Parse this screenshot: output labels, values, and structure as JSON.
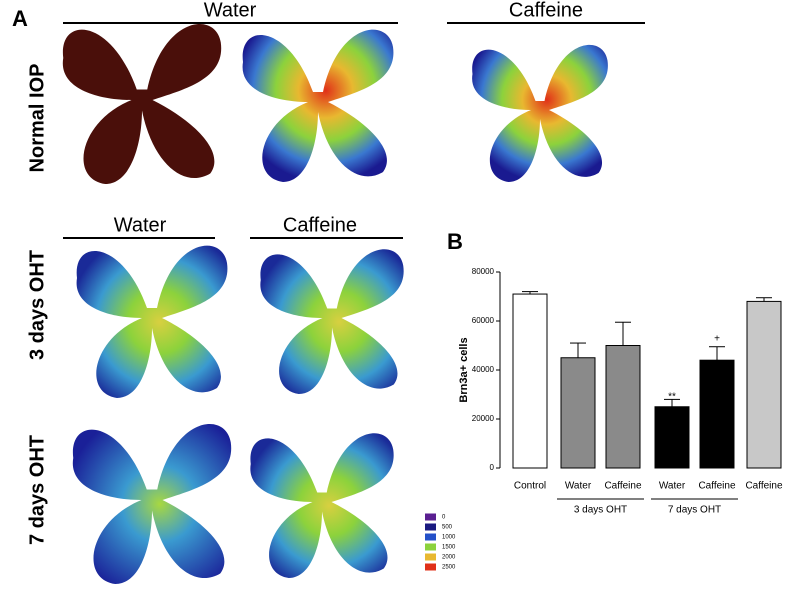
{
  "panel_a": {
    "label": "A",
    "headers": [
      "Water",
      "Caffeine",
      "Water",
      "Caffeine"
    ],
    "row_labels": [
      "Normal IOP",
      "3 days OHT",
      "7 days OHT"
    ],
    "heatmap_legend": [
      {
        "value": 0,
        "color": "#5a1f91"
      },
      {
        "value": 500,
        "color": "#1a1a80"
      },
      {
        "value": 1000,
        "color": "#2450c8"
      },
      {
        "value": 1500,
        "color": "#8cd23c"
      },
      {
        "value": 2000,
        "color": "#e8b830"
      },
      {
        "value": 2500,
        "color": "#e03018"
      }
    ]
  },
  "chart_data": {
    "type": "bar",
    "label": "B",
    "ylabel": "Brn3a+ cells",
    "categories": [
      "Control",
      "Water",
      "Caffeine",
      "Water",
      "Caffeine",
      "Caffeine"
    ],
    "values": [
      71000,
      45000,
      50000,
      25000,
      44000,
      68000
    ],
    "errors": [
      1000,
      6000,
      9500,
      3000,
      5500,
      1500
    ],
    "colors": [
      "#ffffff",
      "#8a8a8a",
      "#8a8a8a",
      "#000000",
      "#000000",
      "#c8c8c8"
    ],
    "groups": [
      {
        "label": "3 days OHT",
        "start": 1,
        "end": 2
      },
      {
        "label": "7 days OHT",
        "start": 3,
        "end": 4
      }
    ],
    "annotations": [
      {
        "text": "**",
        "index": 3
      },
      {
        "text": "+",
        "index": 4
      }
    ],
    "ylim": [
      0,
      80000
    ],
    "yticks": [
      0,
      20000,
      40000,
      60000,
      80000
    ]
  }
}
